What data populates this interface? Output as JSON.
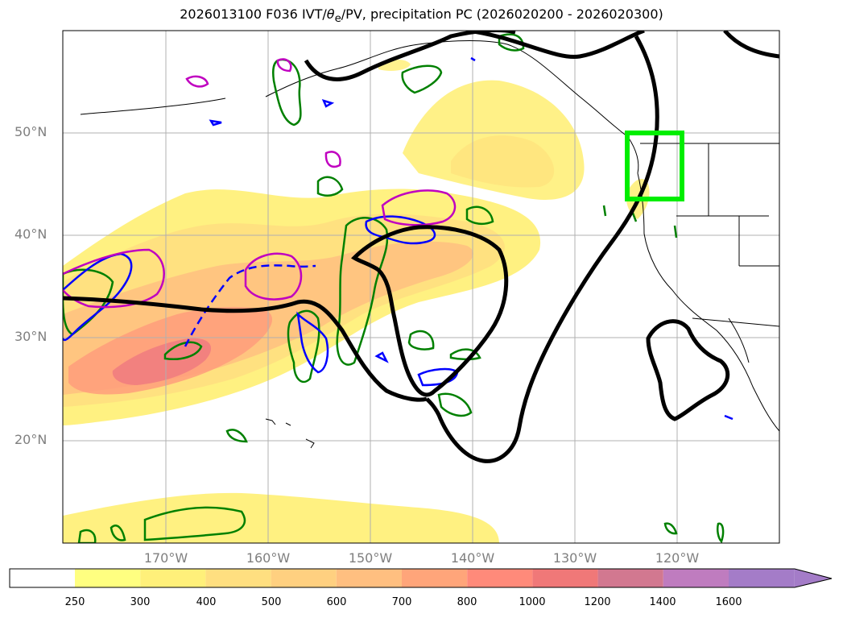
{
  "title": {
    "prefix": "2026013100 F036 IVT/",
    "theta": "θ",
    "theta_sub": "e",
    "suffix": "/PV, precipitation PC (2026020200 - 2026020300)"
  },
  "map": {
    "lat_labels": [
      "50°N",
      "40°N",
      "30°N",
      "20°N"
    ],
    "lon_labels": [
      "170°W",
      "160°W",
      "150°W",
      "140°W",
      "130°W",
      "120°W"
    ],
    "projection": "PlateCarree",
    "lon_range": [
      -180,
      -110
    ],
    "lat_range": [
      10,
      60
    ],
    "gridlines": true,
    "highlight_box": {
      "lon": [
        -125,
        -120
      ],
      "lat": [
        43.5,
        50
      ],
      "color": "#00ee00"
    }
  },
  "colorbar": {
    "levels": [
      "250",
      "300",
      "400",
      "500",
      "600",
      "700",
      "800",
      "1000",
      "1200",
      "1400",
      "1600"
    ],
    "colors": [
      "#ffffff",
      "#ffff80",
      "#fff07a",
      "#ffdf80",
      "#ffd080",
      "#ffbf80",
      "#ffa57a",
      "#ff8a7a",
      "#f07878",
      "#d27890",
      "#bf7cbf",
      "#a47cc8"
    ],
    "extend": "max"
  },
  "legend_colors": {
    "ivt_fill": "#ffd080",
    "pv_contour": "#000000",
    "theta_e_contour": "#0000ff",
    "precip_contour": "#008000",
    "anomaly_contour": "#c000c0"
  }
}
